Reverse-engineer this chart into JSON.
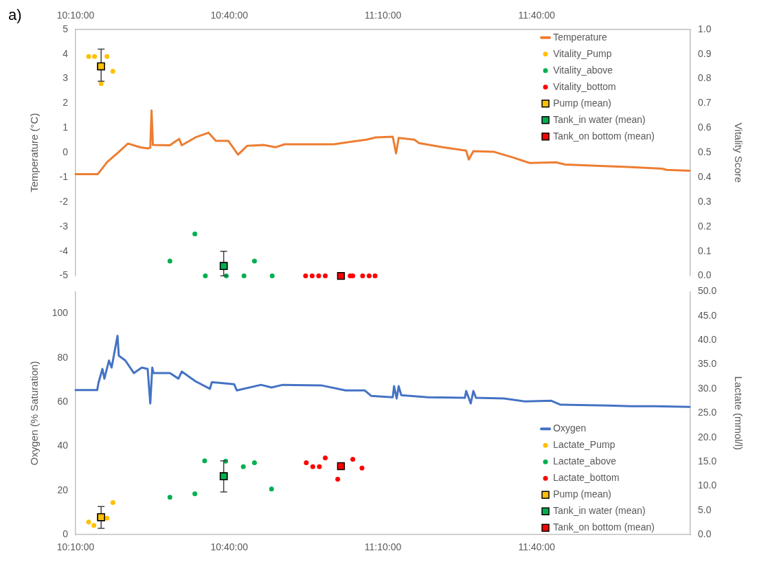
{
  "chart_data": [
    {
      "type": "scatter",
      "annotations": [
        "a)"
      ],
      "ylabel": "Temperature (°C)",
      "y2label": "Vitality Score",
      "legend": "top right",
      "xlim": [
        10.1667,
        12.1667
      ],
      "xticks": [
        {
          "value": 10.1667,
          "label": "10:10:00"
        },
        {
          "value": 10.6667,
          "label": "10:40:00"
        },
        {
          "value": 11.1667,
          "label": "11:10:00"
        },
        {
          "value": 11.6667,
          "label": "11:40:00"
        }
      ],
      "ylim": [
        -5,
        5
      ],
      "yticks": [
        -5,
        -4,
        -3,
        -2,
        -1,
        0,
        1,
        2,
        3,
        4,
        5
      ],
      "y2lim": [
        0,
        1
      ],
      "y2ticks": [
        {
          "value": 0,
          "label": "0.0"
        },
        {
          "value": 0.1,
          "label": "0.1"
        },
        {
          "value": 0.2,
          "label": "0.2"
        },
        {
          "value": 0.3,
          "label": "0.3"
        },
        {
          "value": 0.4,
          "label": "0.4"
        },
        {
          "value": 0.5,
          "label": "0.5"
        },
        {
          "value": 0.6,
          "label": "0.6"
        },
        {
          "value": 0.7,
          "label": "0.7"
        },
        {
          "value": 0.8,
          "label": "0.8"
        },
        {
          "value": 0.9,
          "label": "0.9"
        },
        {
          "value": 1,
          "label": "1.0"
        }
      ],
      "series": [
        {
          "name": "Temperature",
          "type": "line",
          "marker": "none",
          "color": "#ed7d31",
          "x": [
            10.1667,
            10.2392,
            10.269,
            10.3074,
            10.3373,
            10.3757,
            10.4012,
            10.4098,
            10.414,
            10.4183,
            10.4737,
            10.5036,
            10.5121,
            10.5569,
            10.5995,
            10.623,
            10.6635,
            10.6955,
            10.7253,
            10.7786,
            10.817,
            10.8469,
            11.0068,
            11.1134,
            11.1432,
            11.1987,
            11.2093,
            11.2179,
            11.269,
            11.284,
            11.3607,
            11.4375,
            11.446,
            11.4609,
            11.5292,
            11.591,
            11.6443,
            11.7296,
            11.7595,
            11.9748,
            12.075,
            12.0899,
            12.1646
          ],
          "values": [
            -0.87,
            -0.87,
            -0.39,
            0.03,
            0.37,
            0.22,
            0.17,
            0.2,
            1.71,
            0.31,
            0.3,
            0.56,
            0.3,
            0.62,
            0.81,
            0.48,
            0.48,
            -0.08,
            0.28,
            0.31,
            0.22,
            0.34,
            0.34,
            0.53,
            0.62,
            0.65,
            -0.03,
            0.6,
            0.53,
            0.39,
            0.22,
            0.08,
            -0.28,
            0.06,
            0.03,
            -0.2,
            -0.42,
            -0.39,
            -0.48,
            -0.59,
            -0.65,
            -0.7,
            -0.73
          ]
        },
        {
          "name": "Vitality_Pump",
          "axis": "y2",
          "marker": "circle",
          "color": "#ffc000",
          "x": [
            10.2093,
            10.2285,
            10.2499,
            10.269,
            10.2882
          ],
          "values": [
            0.89,
            0.89,
            0.78,
            0.89,
            0.83
          ]
        },
        {
          "name": "Vitality_above",
          "axis": "y2",
          "marker": "circle",
          "color": "#00b050",
          "x": [
            10.4737,
            10.5548,
            10.5889,
            10.6571,
            10.7147,
            10.7488,
            10.8064
          ],
          "values": [
            0.06,
            0.17,
            0,
            0,
            0,
            0.06,
            0
          ]
        },
        {
          "name": "Vitality_bottom",
          "axis": "y2",
          "marker": "circle",
          "color": "#ff0000",
          "x": [
            10.9151,
            10.9364,
            10.9577,
            10.9791,
            11.0601,
            11.0686,
            11.1006,
            11.1219,
            11.1411
          ],
          "values": [
            0,
            0,
            0,
            0,
            0,
            0,
            0,
            0,
            0
          ]
        },
        {
          "name": "Pump (mean)",
          "axis": "y2",
          "marker": "square",
          "color": "#ffc000",
          "x": [
            10.2499
          ],
          "values": [
            0.85
          ],
          "errors": [
            [
              0.79,
              0.92
            ]
          ]
        },
        {
          "name": "Tank_in water (mean)",
          "axis": "y2",
          "marker": "square",
          "color": "#00b050",
          "x": [
            10.6486
          ],
          "values": [
            0.04
          ],
          "errors": [
            [
              0,
              0.1
            ]
          ]
        },
        {
          "name": "Tank_on bottom (mean)",
          "axis": "y2",
          "marker": "square",
          "color": "#ff0000",
          "x": [
            11.0302
          ],
          "values": [
            0
          ]
        }
      ]
    },
    {
      "type": "scatter",
      "ylabel": "Oxygen (% Saturation)",
      "y2label": "Lactate (mmol/l)",
      "legend": "bottom right",
      "xlim": [
        10.1667,
        12.1667
      ],
      "xticks": [
        {
          "value": 10.1667,
          "label": "10:10:00"
        },
        {
          "value": 10.6667,
          "label": "10:40:00"
        },
        {
          "value": 11.1667,
          "label": "11:10:00"
        },
        {
          "value": 11.6667,
          "label": "11:40:00"
        }
      ],
      "ylim": [
        0,
        110
      ],
      "yticks": [
        0,
        20,
        40,
        60,
        80,
        100
      ],
      "y2lim": [
        0,
        50
      ],
      "y2ticks": [
        {
          "value": 0,
          "label": "0.0"
        },
        {
          "value": 5,
          "label": "5.0"
        },
        {
          "value": 10,
          "label": "10.0"
        },
        {
          "value": 15,
          "label": "15.0"
        },
        {
          "value": 20,
          "label": "20.0"
        },
        {
          "value": 25,
          "label": "25.0"
        },
        {
          "value": 30,
          "label": "30.0"
        },
        {
          "value": 35,
          "label": "35.0"
        },
        {
          "value": 40,
          "label": "40.0"
        },
        {
          "value": 45,
          "label": "45.0"
        },
        {
          "value": 50,
          "label": "50.0"
        }
      ],
      "series": [
        {
          "name": "Oxygen",
          "type": "line",
          "marker": "none",
          "color": "#4472c4",
          "x": [
            10.1667,
            10.2371,
            10.2413,
            10.2541,
            10.2605,
            10.2754,
            10.284,
            10.3032,
            10.3074,
            10.3287,
            10.3565,
            10.3821,
            10.4012,
            10.4098,
            10.4162,
            10.4204,
            10.4737,
            10.5015,
            10.5121,
            10.5569,
            10.6038,
            10.6102,
            10.6827,
            10.6912,
            10.7701,
            10.8042,
            10.8405,
            10.9684,
            11.0452,
            11.107,
            11.1283,
            11.1987,
            11.2029,
            11.2115,
            11.2179,
            11.2264,
            11.3138,
            11.4332,
            11.4375,
            11.4524,
            11.4609,
            11.4695,
            11.5612,
            11.6294,
            11.7147,
            11.7445,
            11.898,
            11.9748,
            12.0516,
            12.1646
          ],
          "values": [
            65.4,
            65.4,
            68.7,
            75,
            70.6,
            78.8,
            75.6,
            90,
            81,
            78.8,
            73.1,
            75.6,
            75,
            59.4,
            75.6,
            73.1,
            73.1,
            70.6,
            73.8,
            69.4,
            66,
            69,
            68.1,
            65.3,
            67.8,
            66.6,
            67.8,
            67.5,
            65.3,
            65.3,
            62.8,
            62.2,
            67.2,
            61.6,
            67.2,
            63.1,
            62.2,
            61.9,
            65,
            59.4,
            65,
            61.9,
            61.6,
            60.3,
            60.6,
            58.8,
            58.4,
            58.1,
            58.1,
            57.8
          ]
        },
        {
          "name": "Lactate_Pump",
          "axis": "y2",
          "marker": "circle",
          "color": "#ffc000",
          "x": [
            10.2093,
            10.2264,
            10.269,
            10.2882
          ],
          "values": [
            2.6,
            1.9,
            3.4,
            6.6
          ]
        },
        {
          "name": "Lactate_above",
          "axis": "y2",
          "marker": "circle",
          "color": "#00b050",
          "x": [
            10.4737,
            10.5548,
            10.5867,
            10.655,
            10.7125,
            10.7488,
            10.8042
          ],
          "values": [
            7.7,
            8.4,
            15.2,
            15.1,
            14,
            14.8,
            9.4
          ]
        },
        {
          "name": "Lactate_bottom",
          "axis": "y2",
          "marker": "circle",
          "color": "#ff0000",
          "x": [
            10.9172,
            10.9386,
            10.9599,
            10.9791,
            11.0196,
            11.0686,
            11.0985
          ],
          "values": [
            14.8,
            14,
            14,
            15.8,
            11.4,
            15.5,
            13.7
          ]
        },
        {
          "name": "Pump (mean)",
          "axis": "y2",
          "marker": "square",
          "color": "#ffc000",
          "x": [
            10.2499
          ],
          "values": [
            3.6
          ],
          "errors": [
            [
              1.3,
              5.8
            ]
          ]
        },
        {
          "name": "Tank_in water (mean)",
          "axis": "y2",
          "marker": "square",
          "color": "#00b050",
          "x": [
            10.6486
          ],
          "values": [
            12
          ],
          "errors": [
            [
              8.8,
              15.2
            ]
          ]
        },
        {
          "name": "Tank_on bottom (mean)",
          "axis": "y2",
          "marker": "square",
          "color": "#ff0000",
          "x": [
            11.0302
          ],
          "values": [
            14.1
          ]
        }
      ]
    }
  ]
}
